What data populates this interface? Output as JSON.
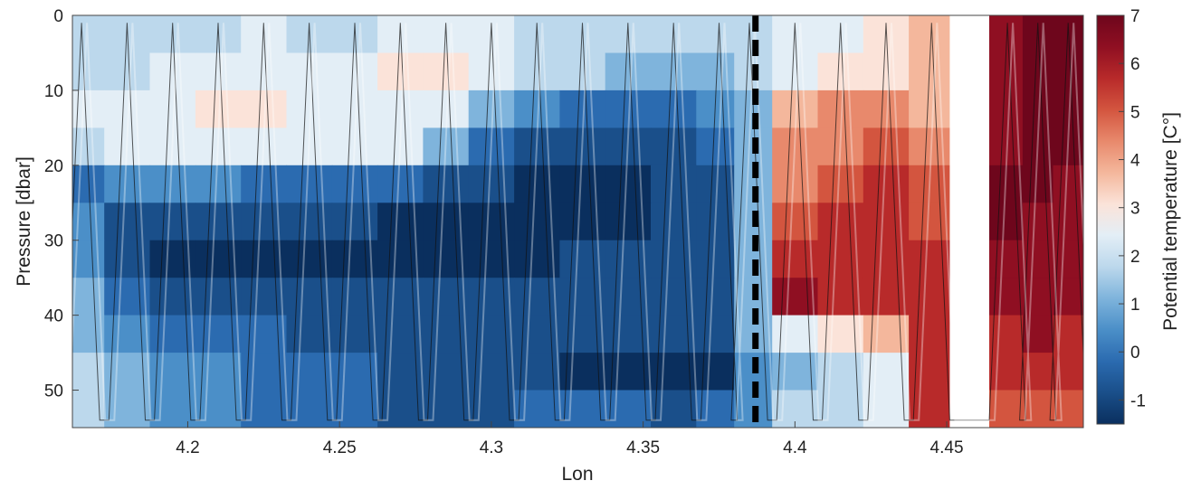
{
  "chart_data": {
    "type": "heatmap",
    "title": "",
    "xlabel": "Lon",
    "ylabel": "Pressure [dbar]",
    "xlim": [
      4.162,
      4.495
    ],
    "ylim": [
      0,
      55
    ],
    "y_reversed": true,
    "x_ticks": [
      4.2,
      4.25,
      4.3,
      4.35,
      4.4,
      4.45
    ],
    "x_tick_labels": [
      "4.2",
      "4.25",
      "4.3",
      "4.35",
      "4.4",
      "4.45"
    ],
    "y_ticks": [
      0,
      10,
      20,
      30,
      40,
      50
    ],
    "y_tick_labels": [
      "0",
      "10",
      "20",
      "30",
      "40",
      "50"
    ],
    "colorbar": {
      "label": "Potential temperature [C°]",
      "range": [
        -1.5,
        7
      ],
      "ticks": [
        -1,
        0,
        1,
        2,
        3,
        4,
        5,
        6,
        7
      ],
      "tick_labels": [
        "-1",
        "0",
        "1",
        "2",
        "3",
        "4",
        "5",
        "6",
        "7"
      ],
      "colormap": "diverging blue-white-red",
      "colors": [
        "#0a2f5e",
        "#1a4f8a",
        "#2b6bb0",
        "#4b8fc8",
        "#7fb4dc",
        "#bcd8ec",
        "#e3eef6",
        "#fbe3d9",
        "#f4b79c",
        "#e8896c",
        "#d3553f",
        "#b82a2a",
        "#8f0f22",
        "#6e061c"
      ]
    },
    "vertical_marker": {
      "x": 4.387,
      "style": "dashed",
      "color": "#000000"
    },
    "data_gap": [
      4.451,
      4.464
    ],
    "lon_grid": [
      4.165,
      4.18,
      4.195,
      4.21,
      4.225,
      4.24,
      4.255,
      4.27,
      4.285,
      4.3,
      4.315,
      4.33,
      4.345,
      4.36,
      4.375,
      4.385,
      4.4,
      4.415,
      4.43,
      4.445,
      4.47,
      4.48,
      4.49
    ],
    "pressure_grid": [
      2.5,
      7.5,
      12.5,
      17.5,
      22.5,
      27.5,
      32.5,
      37.5,
      42.5,
      47.5,
      52.5
    ],
    "temperature": [
      [
        1.8,
        1.7,
        1.9,
        2.0,
        2.2,
        1.9,
        1.8,
        2.2,
        2.5,
        2.3,
        2.0,
        2.0,
        2.1,
        2.0,
        1.8,
        2.0,
        2.4,
        2.6,
        3.0,
        3.4,
        6.2,
        6.6,
        7.0
      ],
      [
        2.0,
        2.1,
        2.2,
        2.3,
        2.6,
        2.5,
        2.6,
        3.0,
        3.2,
        2.4,
        1.9,
        1.6,
        1.5,
        1.4,
        1.0,
        1.9,
        2.6,
        2.9,
        3.2,
        3.6,
        6.0,
        6.6,
        6.9
      ],
      [
        2.2,
        2.4,
        2.6,
        2.8,
        2.8,
        2.6,
        2.5,
        2.7,
        2.4,
        1.4,
        0.4,
        0.2,
        0.0,
        0.2,
        0.5,
        1.4,
        3.4,
        4.0,
        4.0,
        3.8,
        6.0,
        6.5,
        6.6
      ],
      [
        2.0,
        2.3,
        2.5,
        2.5,
        2.5,
        2.3,
        2.2,
        2.3,
        1.2,
        0.2,
        -0.6,
        -0.7,
        -0.6,
        -0.4,
        -0.2,
        1.0,
        4.0,
        4.2,
        4.6,
        4.2,
        6.2,
        6.8,
        6.4
      ],
      [
        0.2,
        0.4,
        0.5,
        0.4,
        0.3,
        0.2,
        0.0,
        -0.1,
        -0.5,
        -0.8,
        -1.2,
        -1.2,
        -1.0,
        -0.8,
        -0.5,
        1.2,
        4.2,
        4.6,
        5.2,
        4.6,
        6.9,
        6.9,
        6.2
      ],
      [
        0.6,
        -0.3,
        -0.6,
        -0.8,
        -0.8,
        -0.8,
        -0.8,
        -0.9,
        -1.0,
        -1.1,
        -1.1,
        -1.2,
        -1.0,
        -0.7,
        -0.4,
        1.2,
        5.0,
        5.4,
        5.6,
        5.0,
        6.8,
        6.2,
        5.8
      ],
      [
        0.9,
        -0.6,
        -1.1,
        -1.2,
        -1.2,
        -1.2,
        -1.2,
        -1.2,
        -1.1,
        -1.1,
        -1.0,
        -0.8,
        -0.8,
        -0.6,
        -0.3,
        1.3,
        5.6,
        5.6,
        5.6,
        5.4,
        6.2,
        6.2,
        5.8
      ],
      [
        1.0,
        0.0,
        -0.6,
        -0.8,
        -0.8,
        -0.8,
        -0.8,
        -0.8,
        -0.7,
        -0.7,
        -0.6,
        -0.6,
        -0.6,
        -0.5,
        -0.3,
        1.4,
        5.8,
        5.6,
        5.6,
        5.6,
        6.0,
        6.0,
        5.8
      ],
      [
        1.5,
        0.6,
        0.2,
        0.1,
        -0.1,
        -0.3,
        -0.4,
        -0.4,
        -0.5,
        -0.6,
        -0.6,
        -0.6,
        -0.7,
        -0.7,
        -0.5,
        1.5,
        2.6,
        2.8,
        3.8,
        5.4,
        5.6,
        5.8,
        5.6
      ],
      [
        1.8,
        1.2,
        0.8,
        0.4,
        0.2,
        0.0,
        -0.1,
        -0.3,
        -0.4,
        -0.6,
        -0.8,
        -1.0,
        -1.0,
        -1.1,
        -0.9,
        0.8,
        1.5,
        2.0,
        2.6,
        5.6,
        5.2,
        5.6,
        5.6
      ],
      [
        2.0,
        1.4,
        0.8,
        0.4,
        0.2,
        0.0,
        -0.2,
        -0.3,
        -0.4,
        -0.4,
        -0.2,
        -0.2,
        -0.2,
        -0.3,
        -0.2,
        0.6,
        1.6,
        2.0,
        2.4,
        5.6,
        4.6,
        5.0,
        4.6
      ]
    ]
  }
}
